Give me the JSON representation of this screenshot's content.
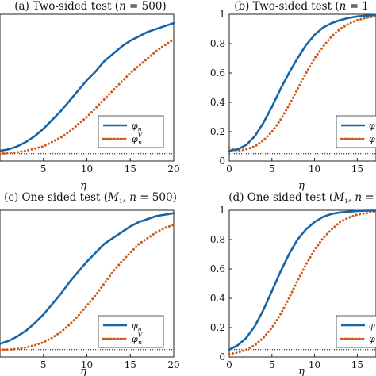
{
  "chart_data": [
    {
      "type": "line",
      "title": "(a) Two-sided test (n = 500)",
      "xlabel": "η",
      "ylabel": "",
      "xlim": [
        0,
        20
      ],
      "ylim": [
        0,
        1
      ],
      "xticks": [
        "5",
        "10",
        "15",
        "20"
      ],
      "yticks": [],
      "legend_position": "bottom-right",
      "grid": false,
      "x": [
        0,
        1,
        2,
        3,
        4,
        5,
        6,
        7,
        8,
        9,
        10,
        11,
        12,
        13,
        14,
        15,
        16,
        17,
        18,
        19,
        20
      ],
      "series": [
        {
          "name": "φn",
          "style": "solid",
          "color": "#1565a8",
          "values": [
            0.07,
            0.08,
            0.1,
            0.13,
            0.17,
            0.22,
            0.28,
            0.34,
            0.41,
            0.48,
            0.55,
            0.61,
            0.68,
            0.73,
            0.78,
            0.82,
            0.85,
            0.88,
            0.9,
            0.92,
            0.94
          ]
        },
        {
          "name": "φnV",
          "style": "dotted",
          "color": "#d2561a",
          "values": [
            0.05,
            0.055,
            0.06,
            0.07,
            0.085,
            0.1,
            0.13,
            0.16,
            0.2,
            0.25,
            0.3,
            0.36,
            0.42,
            0.48,
            0.54,
            0.6,
            0.65,
            0.7,
            0.75,
            0.79,
            0.83
          ]
        }
      ],
      "reference_line": 0.05
    },
    {
      "type": "line",
      "title": "(b) Two-sided test (n = 1",
      "xlabel": "η",
      "ylabel": "",
      "xlim": [
        0,
        17.2
      ],
      "ylim": [
        0,
        1
      ],
      "xticks": [
        "0",
        "5",
        "10",
        "15"
      ],
      "yticks": [
        "0",
        "0.2",
        "0.4",
        "0.6",
        "0.8",
        "1"
      ],
      "legend_position": "bottom-right",
      "grid": false,
      "x": [
        0,
        1,
        2,
        3,
        4,
        5,
        6,
        7,
        8,
        9,
        10,
        11,
        12,
        13,
        14,
        15,
        16,
        17,
        17.2
      ],
      "series": [
        {
          "name": "φn",
          "style": "solid",
          "color": "#1565a8",
          "values": [
            0.07,
            0.08,
            0.11,
            0.17,
            0.26,
            0.37,
            0.49,
            0.6,
            0.7,
            0.79,
            0.86,
            0.91,
            0.94,
            0.96,
            0.975,
            0.985,
            0.99,
            0.995,
            0.995
          ]
        },
        {
          "name": "φnV",
          "style": "dotted",
          "color": "#d2561a",
          "values": [
            0.09,
            0.07,
            0.08,
            0.1,
            0.14,
            0.2,
            0.28,
            0.38,
            0.49,
            0.6,
            0.7,
            0.78,
            0.85,
            0.9,
            0.935,
            0.96,
            0.975,
            0.985,
            0.985
          ]
        }
      ],
      "reference_line": 0.05
    },
    {
      "type": "line",
      "title": "(c) One-sided test (M1, n = 500)",
      "xlabel": "η",
      "ylabel": "",
      "xlim": [
        0,
        20
      ],
      "ylim": [
        0,
        1
      ],
      "xticks": [
        "5",
        "10",
        "15",
        "20"
      ],
      "yticks": [],
      "legend_position": "bottom-right",
      "grid": false,
      "x": [
        0,
        1,
        2,
        3,
        4,
        5,
        6,
        7,
        8,
        9,
        10,
        11,
        12,
        13,
        14,
        15,
        16,
        17,
        18,
        19,
        20
      ],
      "series": [
        {
          "name": "φn",
          "style": "solid",
          "color": "#1565a8",
          "values": [
            0.09,
            0.11,
            0.14,
            0.18,
            0.23,
            0.29,
            0.36,
            0.43,
            0.51,
            0.58,
            0.65,
            0.71,
            0.77,
            0.81,
            0.85,
            0.89,
            0.92,
            0.94,
            0.96,
            0.97,
            0.98
          ]
        },
        {
          "name": "φnV",
          "style": "dotted",
          "color": "#d2561a",
          "values": [
            0.05,
            0.05,
            0.055,
            0.065,
            0.08,
            0.1,
            0.13,
            0.17,
            0.22,
            0.28,
            0.35,
            0.42,
            0.5,
            0.58,
            0.65,
            0.71,
            0.77,
            0.81,
            0.85,
            0.88,
            0.9
          ]
        }
      ],
      "reference_line": 0.05
    },
    {
      "type": "line",
      "title": "(d) One-sided test (M1, n =",
      "xlabel": "η",
      "ylabel": "",
      "xlim": [
        0,
        17.2
      ],
      "ylim": [
        0,
        1
      ],
      "xticks": [
        "0",
        "5",
        "10",
        "15"
      ],
      "yticks": [
        "0",
        "0.2",
        "0.4",
        "0.6",
        "0.8",
        "1"
      ],
      "legend_position": "bottom-right",
      "grid": false,
      "x": [
        0,
        1,
        2,
        3,
        4,
        5,
        6,
        7,
        8,
        9,
        10,
        11,
        12,
        13,
        14,
        15,
        16,
        17,
        17.2
      ],
      "series": [
        {
          "name": "φn",
          "style": "solid",
          "color": "#1565a8",
          "values": [
            0.05,
            0.08,
            0.13,
            0.21,
            0.32,
            0.45,
            0.58,
            0.7,
            0.8,
            0.87,
            0.92,
            0.955,
            0.975,
            0.985,
            0.99,
            0.995,
            0.997,
            0.998,
            0.998
          ]
        },
        {
          "name": "φnV",
          "style": "dotted",
          "color": "#d2561a",
          "values": [
            0.02,
            0.03,
            0.05,
            0.08,
            0.13,
            0.2,
            0.29,
            0.4,
            0.52,
            0.63,
            0.73,
            0.81,
            0.87,
            0.92,
            0.95,
            0.97,
            0.98,
            0.99,
            0.99
          ]
        }
      ],
      "reference_line": 0.05
    }
  ]
}
